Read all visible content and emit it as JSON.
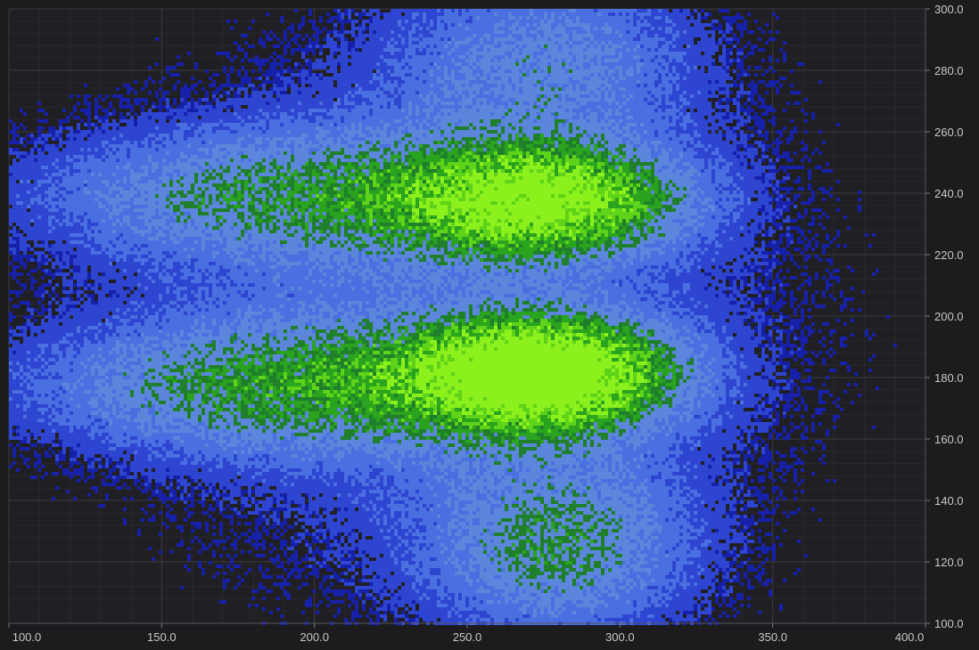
{
  "chart_data": {
    "type": "heatmap",
    "title": "",
    "xlabel": "",
    "ylabel": "",
    "xlim": [
      100,
      400
    ],
    "ylim": [
      100,
      300
    ],
    "x_ticks": [
      "100.0",
      "150.0",
      "200.0",
      "250.0",
      "300.0",
      "350.0",
      "400.0"
    ],
    "y_ticks": [
      "100.0",
      "120.0",
      "140.0",
      "160.0",
      "180.0",
      "200.0",
      "220.0",
      "240.0",
      "260.0",
      "280.0",
      "300.0"
    ],
    "x_tick_values": [
      100,
      150,
      200,
      250,
      300,
      350,
      400
    ],
    "y_tick_values": [
      100,
      120,
      140,
      160,
      180,
      200,
      220,
      240,
      260,
      280,
      300
    ],
    "grid": true,
    "y_axis_position": "right",
    "colormap": [
      "#101a9a",
      "#2a3fd0",
      "#4f78e6",
      "#6a9ae0",
      "#3a9a3a",
      "#1f8a1f",
      "#7de81e"
    ],
    "density_clusters": [
      {
        "x": 275,
        "y": 182,
        "spread_x": 28,
        "spread_y": 12,
        "peak": 1.0
      },
      {
        "x": 275,
        "y": 238,
        "spread_x": 30,
        "spread_y": 12,
        "peak": 0.75
      },
      {
        "x": 190,
        "y": 178,
        "spread_x": 60,
        "spread_y": 15,
        "peak": 0.45
      },
      {
        "x": 190,
        "y": 240,
        "spread_x": 60,
        "spread_y": 15,
        "peak": 0.4
      },
      {
        "x": 280,
        "y": 125,
        "spread_x": 30,
        "spread_y": 20,
        "peak": 0.4
      },
      {
        "x": 275,
        "y": 285,
        "spread_x": 35,
        "spread_y": 20,
        "peak": 0.3
      }
    ],
    "background": "#1c1c1f",
    "grid_color": "#34343a"
  }
}
